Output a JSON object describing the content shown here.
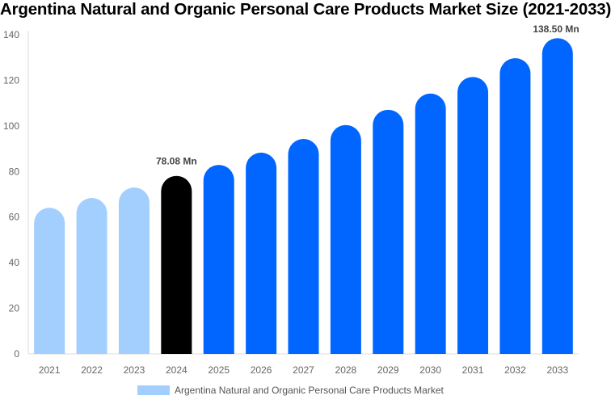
{
  "chart_data": {
    "type": "bar",
    "title": "Argentina Natural and Organic Personal Care Products Market Size (2021-2033)",
    "categories": [
      "2021",
      "2022",
      "2023",
      "2024",
      "2025",
      "2026",
      "2027",
      "2028",
      "2029",
      "2030",
      "2031",
      "2032",
      "2033"
    ],
    "series": [
      {
        "name": "Argentina Natural and Organic Personal Care Products Market",
        "values": [
          64.1,
          68.4,
          73.0,
          78.08,
          82.9,
          88.3,
          94.3,
          100.4,
          107.1,
          114.2,
          121.5,
          129.7,
          138.5
        ]
      }
    ],
    "data_labels": [
      {
        "category": "2024",
        "text": "78.08 Mn"
      },
      {
        "category": "2033",
        "text": "138.50 Mn"
      }
    ],
    "ylim": [
      0,
      140
    ],
    "yticks": [
      0,
      20,
      40,
      60,
      80,
      100,
      120,
      140
    ],
    "xlabel": "",
    "ylabel": "",
    "grid": false,
    "legend": "bottom",
    "colors": {
      "historical": "#a3cffe",
      "current": "#000000",
      "forecast": "#0066ff",
      "legend_swatch": "#a3cffe"
    },
    "color_by_category": [
      "historical",
      "historical",
      "historical",
      "current",
      "forecast",
      "forecast",
      "forecast",
      "forecast",
      "forecast",
      "forecast",
      "forecast",
      "forecast",
      "forecast"
    ]
  }
}
